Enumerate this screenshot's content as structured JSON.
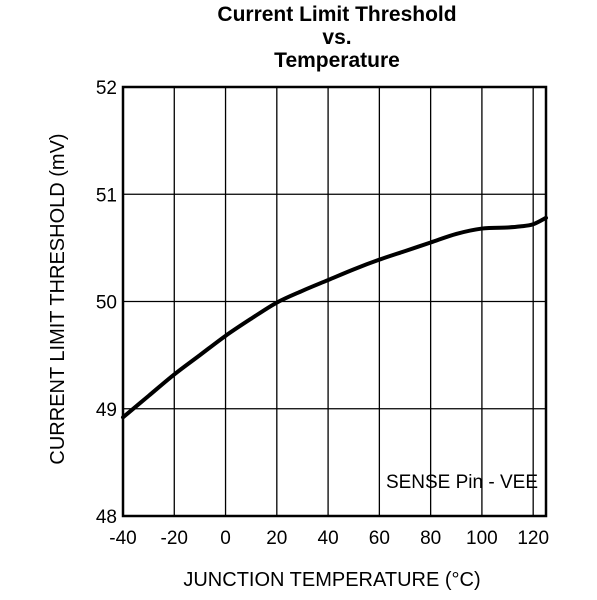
{
  "chart_data": {
    "type": "line",
    "title_lines": [
      "Current Limit Threshold",
      "vs.",
      "Temperature"
    ],
    "xlabel": "JUNCTION TEMPERATURE (°C)",
    "ylabel": "CURRENT LIMIT THRESHOLD (mV)",
    "xlim": [
      -40,
      125
    ],
    "ylim": [
      48,
      52
    ],
    "x_ticks": [
      -40,
      -20,
      0,
      20,
      40,
      60,
      80,
      100,
      120
    ],
    "y_ticks": [
      48,
      49,
      50,
      51,
      52
    ],
    "grid": true,
    "annotation": "SENSE Pin - VEE",
    "series": [
      {
        "color": "#000000",
        "x": [
          -40,
          -30,
          -20,
          -10,
          0,
          10,
          20,
          30,
          40,
          50,
          60,
          70,
          80,
          90,
          100,
          110,
          115,
          120,
          125
        ],
        "y": [
          48.92,
          49.12,
          49.32,
          49.5,
          49.68,
          49.84,
          49.99,
          50.1,
          50.2,
          50.3,
          50.39,
          50.47,
          50.55,
          50.63,
          50.68,
          50.69,
          50.7,
          50.72,
          50.78
        ]
      }
    ]
  }
}
